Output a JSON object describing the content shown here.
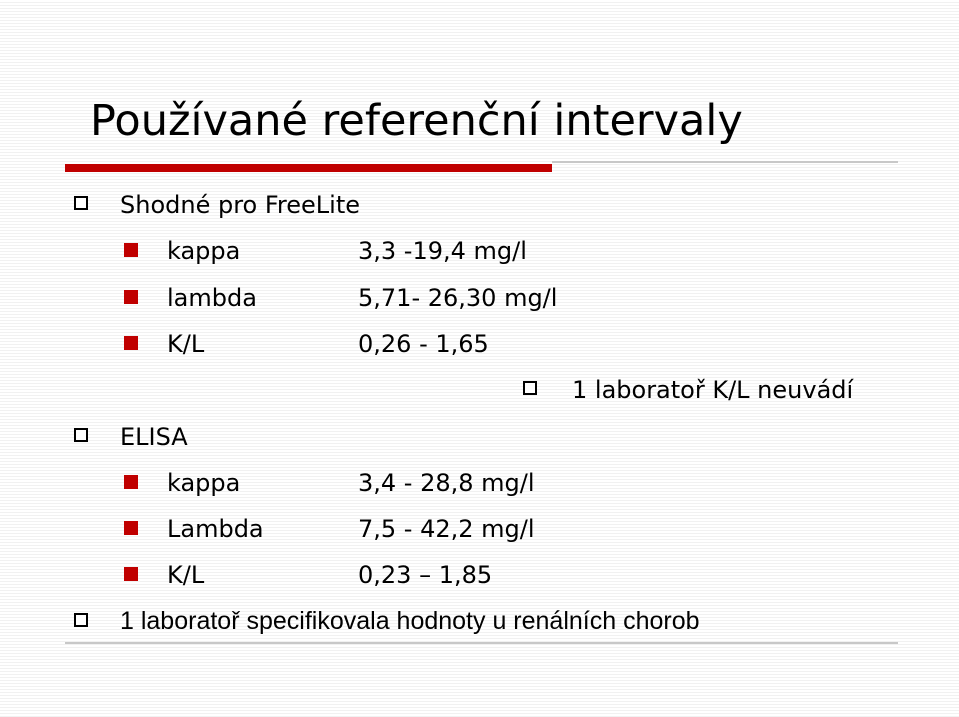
{
  "title": "Používané referenční intervaly",
  "sections": [
    {
      "heading": "Shodné pro FreeLite",
      "rows": [
        {
          "label": "kappa",
          "value": "3,3 -19,4 mg/l"
        },
        {
          "label": "lambda",
          "value": "5,71- 26,30 mg/l"
        },
        {
          "label": "K/L",
          "value": "0,26 - 1,65"
        }
      ],
      "note": "1 laboratoř K/L neuvádí"
    },
    {
      "heading": "ELISA",
      "rows": [
        {
          "label": "kappa",
          "value": "3,4 - 28,8 mg/l"
        },
        {
          "label": "Lambda",
          "value": "7,5 - 42,2 mg/l"
        },
        {
          "label": "K/L",
          "value": "0,23 – 1,85"
        }
      ]
    }
  ],
  "footnote": "1 laboratoř specifikovala hodnoty u renálních chorob"
}
